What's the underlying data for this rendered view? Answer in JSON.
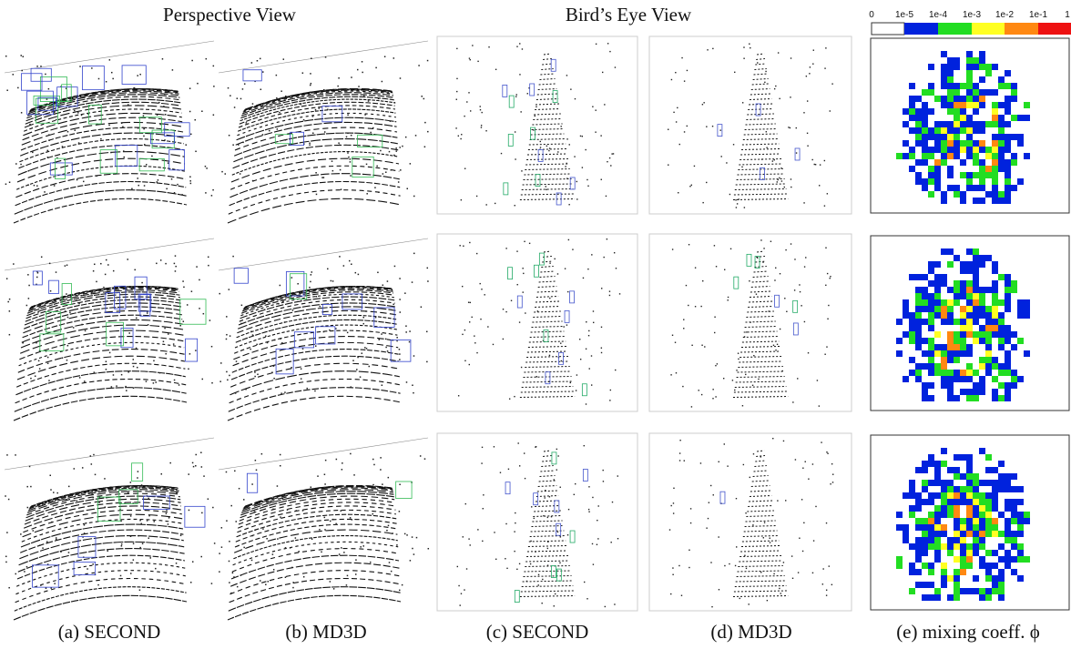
{
  "headers": {
    "perspective": "Perspective View",
    "bev": "Bird’s Eye View"
  },
  "colorbar": {
    "labels": [
      "0",
      "1e-5",
      "1e-4",
      "1e-3",
      "1e-2",
      "1e-1",
      "1"
    ]
  },
  "captions": [
    "(a) SECOND",
    "(b) MD3D",
    "(c) SECOND",
    "(d) MD3D",
    "(e) mixing coeff. ϕ"
  ]
}
